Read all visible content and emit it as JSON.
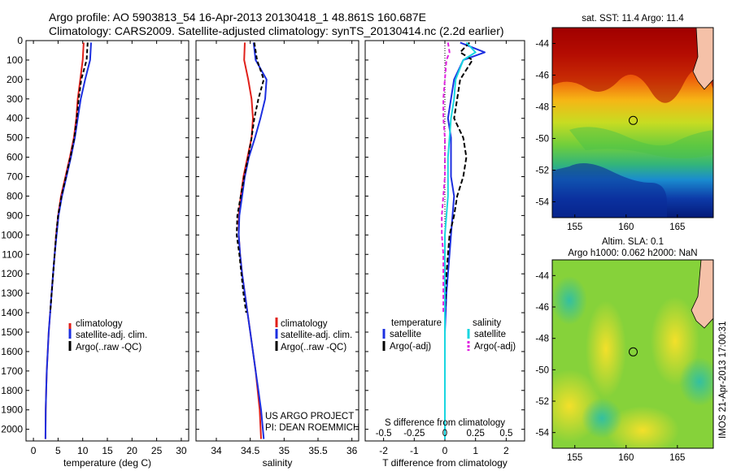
{
  "header": {
    "title_line1": "Argo profile: AO 5903813_54 16-Apr-2013 20130418_1 48.861S 160.687E",
    "title_line2": "Climatology: CARS2009. Satellite-adjusted climatology: synTS_20130414.nc (2.2d earlier)"
  },
  "colors": {
    "climatology": "#e0201a",
    "satellite": "#1c2fe0",
    "argo": "#000000",
    "satellite_s": "#19d6e0",
    "argo_s": "#e020e0"
  },
  "depth_ticks": [
    "0",
    "100",
    "200",
    "300",
    "400",
    "500",
    "600",
    "700",
    "800",
    "900",
    "1000",
    "1100",
    "1200",
    "1300",
    "1400",
    "1500",
    "1600",
    "1700",
    "1800",
    "1900",
    "2000"
  ],
  "chart_data": [
    {
      "type": "line",
      "panel": "temperature",
      "xlabel": "temperature (deg C)",
      "ylabel": "",
      "xlim": [
        -1.5,
        31.5
      ],
      "ylim": [
        2060,
        0
      ],
      "xticks": [
        "0",
        "5",
        "10",
        "15",
        "20",
        "25",
        "30"
      ],
      "legend": [
        "climatology",
        "satellite-adj. clim.",
        "Argo(..raw -QC)"
      ],
      "legend_position": "lower-right",
      "series": [
        {
          "name": "climatology",
          "color_key": "climatology",
          "dash": "",
          "x": [
            10.2,
            10.0,
            9.5,
            9.0,
            8.7,
            8.2,
            7.4,
            6.5,
            5.6,
            5.0,
            4.6,
            4.3,
            4.0,
            3.7,
            3.4,
            3.1,
            2.9,
            2.7,
            2.6,
            2.5,
            2.45
          ],
          "y": [
            10,
            100,
            200,
            300,
            400,
            500,
            600,
            700,
            800,
            900,
            1000,
            1100,
            1200,
            1300,
            1400,
            1500,
            1600,
            1700,
            1800,
            1900,
            2050
          ]
        },
        {
          "name": "satellite-adj. clim.",
          "color_key": "satellite",
          "dash": "",
          "x": [
            11.7,
            11.5,
            10.5,
            9.6,
            9.0,
            8.4,
            7.6,
            6.7,
            5.8,
            5.1,
            4.7,
            4.3,
            4.0,
            3.7,
            3.4,
            3.1,
            2.9,
            2.7,
            2.6,
            2.5,
            2.45
          ],
          "y": [
            10,
            100,
            200,
            300,
            400,
            500,
            600,
            700,
            800,
            900,
            1000,
            1100,
            1200,
            1300,
            1400,
            1500,
            1600,
            1700,
            1800,
            1900,
            2050
          ]
        },
        {
          "name": "Argo(..raw -QC)",
          "color_key": "argo",
          "dash": "5,3",
          "x": [
            11.0,
            10.8,
            9.7,
            9.2,
            8.8,
            8.3,
            7.5,
            6.6,
            5.7,
            5.0,
            4.6,
            4.3,
            4.0,
            3.7,
            3.4
          ],
          "y": [
            10,
            100,
            200,
            300,
            400,
            500,
            600,
            700,
            800,
            900,
            1000,
            1100,
            1200,
            1300,
            1400
          ]
        }
      ]
    },
    {
      "type": "line",
      "panel": "salinity",
      "xlabel": "salinity",
      "ylabel": "",
      "xlim": [
        33.7,
        36.1
      ],
      "ylim": [
        2060,
        0
      ],
      "xticks": [
        "34",
        "34.5",
        "35",
        "35.5",
        "36"
      ],
      "legend": [
        "climatology",
        "satellite-adj. clim.",
        "Argo(..raw -QC)"
      ],
      "legend_position": "lower-right",
      "annotation_line1": "US ARGO PROJECT",
      "annotation_line2": "PI: DEAN ROEMMICH",
      "series": [
        {
          "name": "climatology",
          "color_key": "climatology",
          "dash": "",
          "x": [
            34.42,
            34.41,
            34.47,
            34.52,
            34.54,
            34.52,
            34.46,
            34.4,
            34.36,
            34.33,
            34.33,
            34.35,
            34.38,
            34.42,
            34.46,
            34.5,
            34.54,
            34.58,
            34.61,
            34.64,
            34.66
          ],
          "y": [
            10,
            100,
            200,
            300,
            400,
            500,
            600,
            700,
            800,
            900,
            1000,
            1100,
            1200,
            1300,
            1400,
            1500,
            1600,
            1700,
            1800,
            1900,
            2050
          ]
        },
        {
          "name": "satellite-adj. clim.",
          "color_key": "satellite",
          "dash": "",
          "x": [
            34.55,
            34.58,
            34.74,
            34.72,
            34.65,
            34.57,
            34.48,
            34.42,
            34.38,
            34.34,
            34.33,
            34.35,
            34.38,
            34.42,
            34.46,
            34.5,
            34.54,
            34.58,
            34.62,
            34.66,
            34.7
          ],
          "y": [
            10,
            100,
            200,
            300,
            400,
            500,
            600,
            700,
            800,
            900,
            1000,
            1100,
            1200,
            1300,
            1400,
            1500,
            1600,
            1700,
            1800,
            1900,
            2050
          ]
        },
        {
          "name": "Argo(..raw -QC)",
          "color_key": "argo",
          "dash": "5,3",
          "x": [
            34.56,
            34.6,
            34.7,
            34.62,
            34.56,
            34.52,
            34.47,
            34.41,
            34.36,
            34.31,
            34.3,
            34.34,
            34.37,
            34.4,
            34.44
          ],
          "y": [
            10,
            100,
            200,
            300,
            400,
            500,
            600,
            700,
            800,
            900,
            1000,
            1100,
            1200,
            1300,
            1400
          ]
        }
      ]
    },
    {
      "type": "line",
      "panel": "difference",
      "xlabel": "T difference from climatology",
      "ylabel": "",
      "xlim": [
        -2.6,
        2.6
      ],
      "ylim": [
        2060,
        0
      ],
      "xticks": [
        "-2",
        "-1",
        "0",
        "1",
        "2"
      ],
      "top_xlabel": "S difference from climatology",
      "top_xticks": [
        "-0.5",
        "-0.25",
        "0",
        "0.25",
        "0.5"
      ],
      "legend_col1_title": "temperature",
      "legend_col2_title": "salinity",
      "legend_col1": [
        "satellite",
        "Argo(-adj)"
      ],
      "legend_col2": [
        "satellite",
        "Argo(-adj)"
      ],
      "series": [
        {
          "name": "T satellite",
          "color_key": "satellite",
          "dash": "",
          "x": [
            0.5,
            1.3,
            0.6,
            0.3,
            0.2,
            0.1,
            0.2,
            0.2,
            0.2,
            0.3,
            0.25,
            0.2,
            0.15,
            0.05,
            0.0,
            0.0,
            0.0,
            0.0,
            0.0,
            0.0,
            0.0
          ],
          "y": [
            10,
            60,
            100,
            200,
            300,
            400,
            500,
            600,
            700,
            800,
            900,
            1000,
            1100,
            1300,
            1500,
            1600,
            1700,
            1800,
            1900,
            2000,
            2050
          ]
        },
        {
          "name": "T Argo(-adj)",
          "color_key": "argo",
          "dash": "6,3",
          "x": [
            0.8,
            0.5,
            0.9,
            0.5,
            0.4,
            0.3,
            0.6,
            0.7,
            0.6,
            0.4,
            0.3,
            0.15,
            0.1,
            0.05,
            0.0
          ],
          "y": [
            10,
            60,
            100,
            200,
            300,
            400,
            500,
            600,
            700,
            800,
            900,
            1000,
            1100,
            1200,
            1400
          ]
        },
        {
          "name": "S satellite",
          "color_key": "satellite_s",
          "dash": "",
          "x": [
            0.7,
            1.0,
            0.6,
            0.35,
            0.3,
            0.2,
            0.15,
            0.1,
            0.1,
            0.1,
            0.05,
            0.0,
            0.0,
            0.0,
            0.0,
            0.0,
            0.0,
            0.0,
            0.0
          ],
          "y": [
            10,
            60,
            100,
            200,
            300,
            400,
            500,
            600,
            700,
            800,
            900,
            1000,
            1200,
            1400,
            1600,
            1700,
            1800,
            1900,
            2050
          ]
        },
        {
          "name": "S Argo(-adj)",
          "color_key": "argo_s",
          "dash": "5,3",
          "x": [
            0.1,
            0.15,
            0.05,
            0.0,
            -0.05,
            -0.05,
            0.0,
            0.0,
            0.0,
            -0.1,
            -0.1,
            -0.05,
            -0.05,
            -0.05
          ],
          "y": [
            10,
            60,
            100,
            200,
            300,
            400,
            500,
            600,
            700,
            900,
            1000,
            1100,
            1300,
            1400
          ]
        }
      ]
    }
  ],
  "maps": {
    "sst": {
      "title": "sat. SST: 11.4  Argo: 11.4",
      "yticks": [
        "-44",
        "-46",
        "-48",
        "-50",
        "-52",
        "-54"
      ],
      "xticks": [
        "155",
        "160",
        "165"
      ],
      "lonlim": [
        152.8,
        168.5
      ],
      "latlim": [
        -55.0,
        -43.0
      ],
      "float_lon": 160.687,
      "float_lat": -48.861
    },
    "sla": {
      "title_line1": "Altim. SLA: 0.1",
      "title_line2": "Argo h1000: 0.062 h2000: NaN",
      "yticks": [
        "-44",
        "-46",
        "-48",
        "-50",
        "-52",
        "-54"
      ],
      "xticks": [
        "155",
        "160",
        "165"
      ],
      "lonlim": [
        152.8,
        168.5
      ],
      "latlim": [
        -55.0,
        -43.0
      ],
      "float_lon": 160.687,
      "float_lat": -48.861
    },
    "credit": "IMOS 21-Apr-2013 17:00:31"
  }
}
